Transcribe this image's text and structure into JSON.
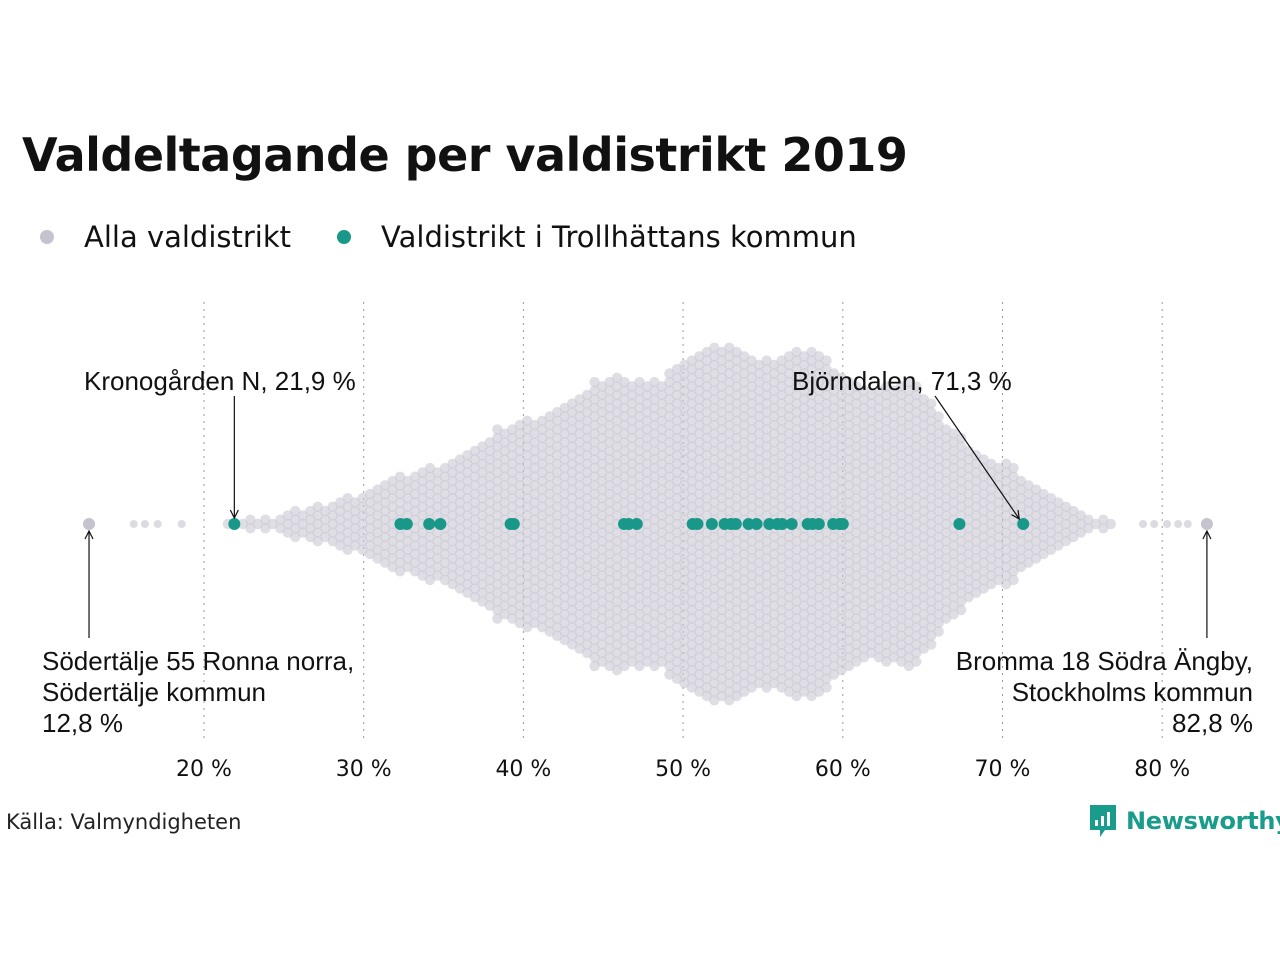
{
  "chart_data": {
    "type": "scatter",
    "subtype": "beeswarm",
    "title": "Valdeltagande per valdistrikt 2019",
    "xlabel": "",
    "ylabel": "",
    "xlim": [
      11,
      85
    ],
    "x_ticks": [
      20,
      30,
      40,
      50,
      60,
      70,
      80
    ],
    "x_tick_labels": [
      "20 %",
      "30 %",
      "40 %",
      "50 %",
      "60 %",
      "70 %",
      "80 %"
    ],
    "grid": "vertical-dotted",
    "legend_position": "top-left",
    "colors": {
      "all": "#c4c3cf",
      "highlight": "#19988a"
    },
    "series": [
      {
        "name": "Alla valdistrikt",
        "color": "#c4c3cf",
        "min": 12.8,
        "max": 82.8,
        "median": 54,
        "outliers": [
          12.8,
          15.6,
          16.3,
          17.1,
          18.6,
          78.8,
          79.5,
          80.3,
          81.0,
          81.6,
          82.8
        ]
      },
      {
        "name": "Valdistrikt i Trollhättans kommun",
        "color": "#19988a",
        "values": [
          21.9,
          32.3,
          32.7,
          34.1,
          34.8,
          39.2,
          39.4,
          46.3,
          46.6,
          47.1,
          50.6,
          50.9,
          51.8,
          52.6,
          53.0,
          53.3,
          54.1,
          54.6,
          55.4,
          55.9,
          56.2,
          56.8,
          57.8,
          58.1,
          58.5,
          59.4,
          59.8,
          60.0,
          67.3,
          71.3
        ]
      }
    ],
    "annotations": [
      {
        "id": "min",
        "lines": [
          "Södertälje 55 Ronna norra,",
          "Södertälje kommun",
          "12,8 %"
        ],
        "x": 12.8,
        "align": "left"
      },
      {
        "id": "kronogarden",
        "lines": [
          "Kronogården N, 21,9 %"
        ],
        "x": 21.9,
        "align": "left"
      },
      {
        "id": "bjorndalen",
        "lines": [
          "Björndalen, 71,3 %"
        ],
        "x": 71.3,
        "align": "left"
      },
      {
        "id": "max",
        "lines": [
          "Bromma 18 Södra Ängby,",
          "Stockholms kommun",
          "82,8 %"
        ],
        "x": 82.8,
        "align": "right"
      }
    ]
  },
  "legend": {
    "items": [
      {
        "label": "Alla valdistrikt",
        "color": "#c4c3cf"
      },
      {
        "label": "Valdistrikt i Trollhättans kommun",
        "color": "#19988a"
      }
    ]
  },
  "source": "Källa: Valmyndigheten",
  "brand": {
    "name": "Newsworthy",
    "icon": "newsworthy-logo-icon",
    "color": "#1a9c8c"
  }
}
